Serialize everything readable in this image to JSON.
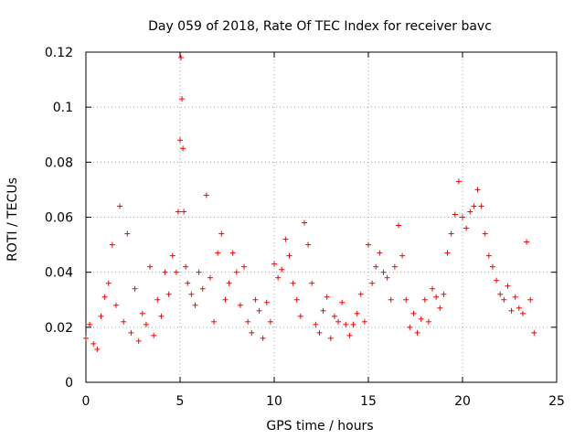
{
  "chart_data": {
    "type": "scatter",
    "title": "Day 059 of 2018, Rate Of TEC Index for receiver bavc",
    "xlabel": "GPS time / hours",
    "ylabel": "ROTI / TECUs",
    "xlim": [
      0,
      25
    ],
    "ylim": [
      0,
      0.12
    ],
    "x_ticks": [
      0,
      5,
      10,
      15,
      20,
      25
    ],
    "x_tick_labels": [
      "0",
      "5",
      "10",
      "15",
      "20",
      "25"
    ],
    "y_ticks": [
      0,
      0.02,
      0.04,
      0.06,
      0.08,
      0.1,
      0.12
    ],
    "y_tick_labels": [
      "0",
      "0.02",
      "0.04",
      "0.06",
      "0.08",
      "0.1",
      "0.12"
    ],
    "grid": true,
    "marker": "+",
    "color": "#ff0000",
    "series": [
      {
        "name": "ROTI",
        "x": [
          0.0,
          0.2,
          0.4,
          0.6,
          0.8,
          1.0,
          1.2,
          1.4,
          1.6,
          1.8,
          2.0,
          2.2,
          2.4,
          2.6,
          2.8,
          3.0,
          3.2,
          3.4,
          3.6,
          3.8,
          4.0,
          4.2,
          4.4,
          4.6,
          4.8,
          4.9,
          5.0,
          5.05,
          5.1,
          5.15,
          5.2,
          5.3,
          5.4,
          5.6,
          5.8,
          6.0,
          6.2,
          6.4,
          6.6,
          6.8,
          7.0,
          7.2,
          7.4,
          7.6,
          7.8,
          8.0,
          8.2,
          8.4,
          8.6,
          8.8,
          9.0,
          9.2,
          9.4,
          9.6,
          9.8,
          10.0,
          10.2,
          10.4,
          10.6,
          10.8,
          11.0,
          11.2,
          11.4,
          11.6,
          11.8,
          12.0,
          12.2,
          12.4,
          12.6,
          12.8,
          13.0,
          13.2,
          13.4,
          13.6,
          13.8,
          14.0,
          14.2,
          14.4,
          14.6,
          14.8,
          15.0,
          15.2,
          15.4,
          15.6,
          15.8,
          16.0,
          16.2,
          16.4,
          16.6,
          16.8,
          17.0,
          17.2,
          17.4,
          17.6,
          17.8,
          18.0,
          18.2,
          18.4,
          18.6,
          18.8,
          19.0,
          19.2,
          19.4,
          19.6,
          19.8,
          20.0,
          20.2,
          20.4,
          20.6,
          20.8,
          21.0,
          21.2,
          21.4,
          21.6,
          21.8,
          22.0,
          22.2,
          22.4,
          22.6,
          22.8,
          23.0,
          23.2,
          23.4,
          23.6,
          23.8
        ],
        "y": [
          0.016,
          0.021,
          0.014,
          0.012,
          0.024,
          0.031,
          0.036,
          0.05,
          0.028,
          0.064,
          0.022,
          0.054,
          0.018,
          0.034,
          0.015,
          0.025,
          0.021,
          0.042,
          0.017,
          0.03,
          0.024,
          0.04,
          0.032,
          0.046,
          0.04,
          0.062,
          0.088,
          0.118,
          0.103,
          0.085,
          0.062,
          0.042,
          0.036,
          0.032,
          0.028,
          0.04,
          0.034,
          0.068,
          0.038,
          0.022,
          0.047,
          0.054,
          0.03,
          0.036,
          0.047,
          0.04,
          0.028,
          0.042,
          0.022,
          0.018,
          0.03,
          0.026,
          0.016,
          0.029,
          0.022,
          0.043,
          0.038,
          0.041,
          0.052,
          0.046,
          0.036,
          0.03,
          0.024,
          0.058,
          0.05,
          0.036,
          0.021,
          0.018,
          0.026,
          0.031,
          0.016,
          0.024,
          0.022,
          0.029,
          0.021,
          0.017,
          0.021,
          0.025,
          0.032,
          0.022,
          0.05,
          0.036,
          0.042,
          0.047,
          0.04,
          0.038,
          0.03,
          0.042,
          0.057,
          0.046,
          0.03,
          0.02,
          0.025,
          0.018,
          0.023,
          0.03,
          0.022,
          0.034,
          0.031,
          0.027,
          0.032,
          0.047,
          0.054,
          0.061,
          0.073,
          0.06,
          0.056,
          0.062,
          0.064,
          0.07,
          0.064,
          0.054,
          0.046,
          0.042,
          0.037,
          0.032,
          0.03,
          0.035,
          0.026,
          0.031,
          0.027,
          0.025,
          0.051,
          0.03,
          0.018
        ]
      }
    ]
  }
}
